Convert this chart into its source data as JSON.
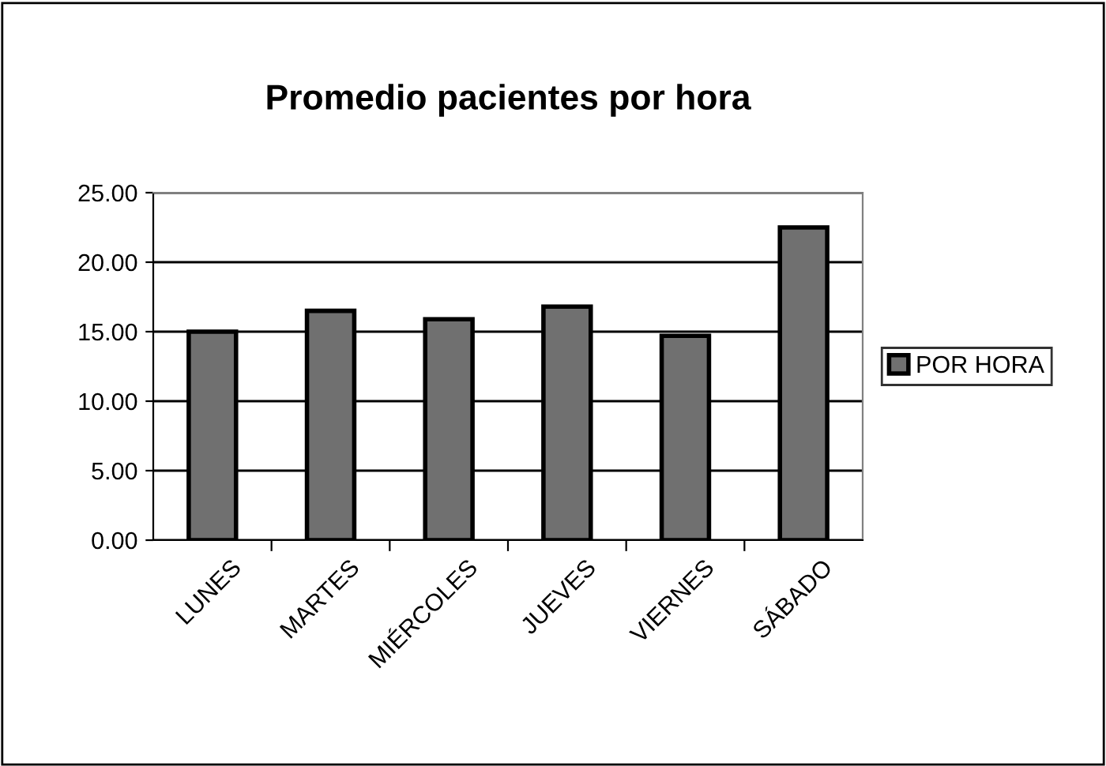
{
  "chart_data": {
    "type": "bar",
    "title": "Promedio pacientes por hora",
    "categories": [
      "LUNES",
      "MARTES",
      "MIÉRCOLES",
      "JUEVES",
      "VIERNES",
      "SÁBADO"
    ],
    "series": [
      {
        "name": "POR HORA",
        "color": "#707070",
        "values": [
          15.0,
          16.5,
          15.9,
          16.8,
          14.7,
          22.5
        ]
      }
    ],
    "ylim": [
      0,
      25
    ],
    "yticks": [
      {
        "value": 0,
        "label": "0.00"
      },
      {
        "value": 5,
        "label": "5.00"
      },
      {
        "value": 10,
        "label": "10.00"
      },
      {
        "value": 15,
        "label": "15.00"
      },
      {
        "value": 20,
        "label": "20.00"
      },
      {
        "value": 25,
        "label": "25.00"
      }
    ],
    "grid": "y",
    "legend": "right"
  }
}
